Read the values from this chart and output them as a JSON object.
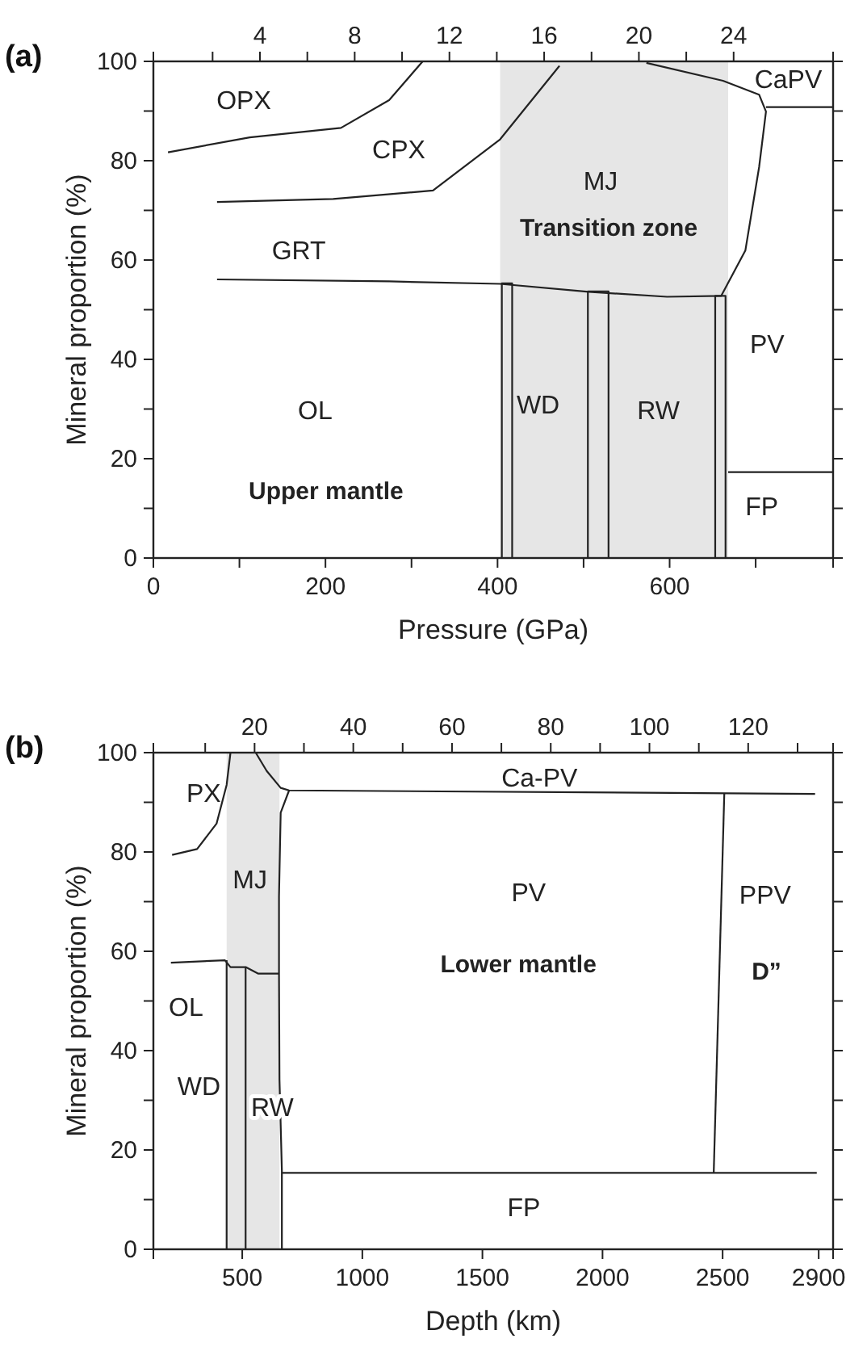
{
  "chart_data": [
    {
      "type": "line",
      "title": "(a)",
      "xlabel": "Pressure (GPa)",
      "ylabel": "Mineral proportion (%)",
      "xlim": [
        0,
        790
      ],
      "ylim": [
        0,
        100
      ],
      "xticks": [
        0,
        {
          "value": 100,
          "label": null
        },
        200,
        {
          "value": 300,
          "label": null
        },
        400,
        {
          "value": 500,
          "label": null
        },
        600,
        {
          "value": 700,
          "label": null
        }
      ],
      "x2lim": [
        -0.5,
        28.2
      ],
      "x2ticks": [
        {
          "value": 2,
          "label": null
        },
        4,
        {
          "value": 6,
          "label": null
        },
        8,
        {
          "value": 10,
          "label": null
        },
        12,
        {
          "value": 14,
          "label": null
        },
        16,
        {
          "value": 18,
          "label": null
        },
        20,
        {
          "value": 22,
          "label": null
        },
        24
      ],
      "yticks": [
        0,
        {
          "value": 10,
          "label": null
        },
        20,
        {
          "value": 30,
          "label": null
        },
        40,
        {
          "value": 50,
          "label": null
        },
        60,
        {
          "value": 70,
          "label": null
        },
        80,
        {
          "value": 90,
          "label": null
        },
        100
      ],
      "grid": false,
      "marker": "none",
      "line_style": "solid",
      "bands": [
        {
          "axis": "x",
          "from": 403,
          "to": 668,
          "color": "#e6e6e6"
        }
      ],
      "series": [
        {
          "color": "#222222",
          "x": [
            17,
            112,
            218,
            274,
            313
          ],
          "values": [
            81.7,
            84.7,
            86.6,
            92.2,
            100
          ]
        },
        {
          "color": "#222222",
          "x": [
            74,
            209,
            325,
            403,
            472
          ],
          "values": [
            71.7,
            72.3,
            74,
            84.3,
            99.1
          ]
        },
        {
          "color": "#222222",
          "x": [
            74,
            274,
            403,
            506,
            597,
            660,
            688,
            704,
            712,
            704,
            662,
            573
          ],
          "values": [
            56.1,
            55.7,
            55.2,
            53.6,
            52.6,
            52.8,
            61.9,
            78.7,
            89.9,
            93.3,
            96.1,
            99.7
          ]
        },
        {
          "color": "#222222",
          "x": [
            712,
            790
          ],
          "values": [
            90.8,
            90.8
          ]
        },
        {
          "color": "#222222",
          "x": [
            668,
            790
          ],
          "values": [
            17.3,
            17.3
          ]
        },
        {
          "color": "#222222",
          "x": [
            405,
            405,
            417,
            417
          ],
          "values": [
            0,
            55.3,
            55.3,
            0
          ]
        },
        {
          "color": "#222222",
          "x": [
            505,
            505,
            529,
            529
          ],
          "values": [
            0,
            53.7,
            53.7,
            0
          ]
        },
        {
          "color": "#222222",
          "x": [
            653,
            653,
            665,
            665
          ],
          "values": [
            0,
            52.8,
            52.8,
            0
          ]
        }
      ],
      "annotations": [
        "OPX",
        "CPX",
        "MJ",
        "Transition zone",
        "GRT",
        "CaPV",
        "PV",
        "WD",
        "RW",
        "OL",
        "Upper mantle",
        "FP"
      ]
    },
    {
      "type": "line",
      "title": "(b)",
      "xlabel": "Depth (km)",
      "ylabel": "Mineral proportion (%)",
      "xlim": [
        130,
        2960
      ],
      "ylim": [
        0,
        100
      ],
      "xticks": [
        500,
        1000,
        1500,
        2000,
        2500,
        2900
      ],
      "x2lim": [
        -0.5,
        137.2
      ],
      "x2ticks": [
        {
          "value": 10,
          "label": null
        },
        20,
        {
          "value": 30,
          "label": null
        },
        40,
        {
          "value": 50,
          "label": null
        },
        60,
        {
          "value": 70,
          "label": null
        },
        80,
        {
          "value": 90,
          "label": null
        },
        100,
        {
          "value": 110,
          "label": null
        },
        120,
        {
          "value": 130,
          "label": null
        }
      ],
      "yticks": [
        0,
        {
          "value": 10,
          "label": null
        },
        20,
        {
          "value": 30,
          "label": null
        },
        40,
        {
          "value": 50,
          "label": null
        },
        60,
        {
          "value": 70,
          "label": null
        },
        80,
        {
          "value": 90,
          "label": null
        },
        100
      ],
      "grid": false,
      "marker": "none",
      "line_style": "solid",
      "bands": [
        {
          "axis": "x",
          "from": 435,
          "to": 655,
          "color": "#e6e6e6"
        }
      ],
      "series": [
        {
          "color": "#222222",
          "x": [
            208,
            312,
            393,
            435,
            451
          ],
          "values": [
            79.4,
            80.6,
            85.7,
            93.5,
            100
          ]
        },
        {
          "color": "#222222",
          "x": [
            556,
            602,
            660,
            695,
            2885
          ],
          "values": [
            100,
            96.3,
            92.9,
            92.4,
            91.7
          ]
        },
        {
          "color": "#222222",
          "x": [
            695,
            660,
            653,
            653,
            655,
            665,
            665
          ],
          "values": [
            92.4,
            87.9,
            71.1,
            55.5,
            34.2,
            15.8,
            0
          ]
        },
        {
          "color": "#222222",
          "x": [
            203,
            428,
            451,
            516,
            567,
            653
          ],
          "values": [
            57.7,
            58.2,
            56.8,
            56.8,
            55.5,
            55.5
          ]
        },
        {
          "color": "#222222",
          "x": [
            435,
            435
          ],
          "values": [
            0,
            58.2
          ]
        },
        {
          "color": "#222222",
          "x": [
            514,
            514
          ],
          "values": [
            0,
            56.8
          ]
        },
        {
          "color": "#222222",
          "x": [
            665,
            2892
          ],
          "values": [
            15.4,
            15.4
          ]
        },
        {
          "color": "#222222",
          "x": [
            2463,
            2507
          ],
          "values": [
            15.4,
            91.7
          ]
        }
      ],
      "annotations": [
        "PX",
        "MJ",
        "Ca-PV",
        "PV",
        "PPV",
        "Lower mantle",
        "D”",
        "OL",
        "WD",
        "RW",
        "FP"
      ]
    }
  ]
}
